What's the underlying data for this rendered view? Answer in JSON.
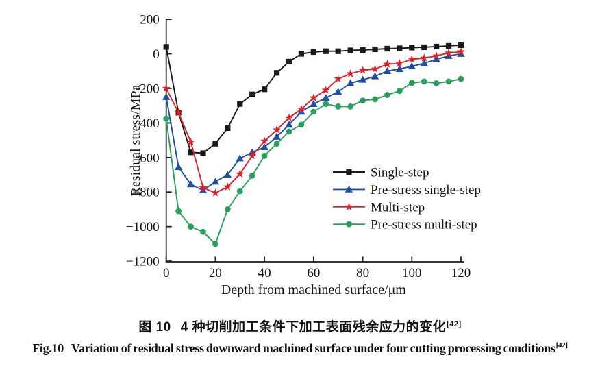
{
  "figure": {
    "caption_zh": {
      "label": "图 10",
      "text": "4 种切削加工条件下加工表面残余应力的变化",
      "sup": "[42]"
    },
    "caption_en": {
      "label": "Fig.10",
      "text": "Variation of residual stress downward machined surface under four cutting processing conditions",
      "sup": "[42]"
    }
  },
  "chart_data": {
    "type": "line",
    "title": "",
    "xlabel": "Depth from machined surface/μm",
    "ylabel": "Residual stress/MPa",
    "xlim": [
      0,
      120
    ],
    "ylim": [
      -1200,
      200
    ],
    "x_ticks": [
      0,
      20,
      40,
      60,
      80,
      100,
      120
    ],
    "y_ticks": [
      200,
      0,
      -200,
      -400,
      -600,
      -800,
      -1000,
      -1200
    ],
    "grid": false,
    "legend_position": "inside-right",
    "axis_color": "#1a1a1a",
    "x": [
      0,
      5,
      10,
      15,
      20,
      25,
      30,
      35,
      40,
      45,
      50,
      55,
      60,
      65,
      70,
      75,
      80,
      85,
      90,
      95,
      100,
      105,
      110,
      115,
      120
    ],
    "series": [
      {
        "name": "Single-step",
        "color": "#1a1a1a",
        "marker": "square",
        "values": [
          40,
          -340,
          -570,
          -575,
          -520,
          -430,
          -290,
          -235,
          -205,
          -110,
          -45,
          0,
          10,
          15,
          15,
          20,
          22,
          26,
          30,
          32,
          36,
          38,
          42,
          46,
          50
        ]
      },
      {
        "name": "Pre-stress single-step",
        "color": "#1d50a2",
        "marker": "triangle",
        "values": [
          -250,
          -655,
          -755,
          -790,
          -740,
          -700,
          -605,
          -570,
          -540,
          -480,
          -410,
          -335,
          -290,
          -255,
          -220,
          -170,
          -150,
          -130,
          -100,
          -88,
          -72,
          -55,
          -32,
          -12,
          0
        ]
      },
      {
        "name": "Multi-step",
        "color": "#e22028",
        "marker": "star",
        "values": [
          -200,
          -340,
          -510,
          -775,
          -805,
          -770,
          -695,
          -590,
          -505,
          -440,
          -370,
          -320,
          -255,
          -210,
          -145,
          -115,
          -95,
          -88,
          -60,
          -55,
          -32,
          -25,
          -12,
          5,
          12
        ]
      },
      {
        "name": "Pre-stress multi-step",
        "color": "#28a05c",
        "marker": "circle",
        "values": [
          -375,
          -910,
          -1000,
          -1030,
          -1100,
          -900,
          -795,
          -705,
          -590,
          -520,
          -450,
          -410,
          -335,
          -290,
          -305,
          -305,
          -270,
          -263,
          -238,
          -215,
          -168,
          -160,
          -170,
          -160,
          -145
        ]
      }
    ]
  }
}
